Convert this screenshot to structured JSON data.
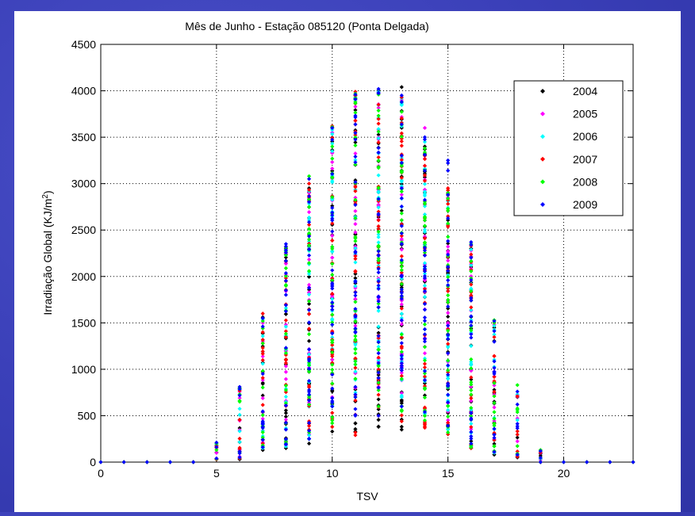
{
  "chart_data": {
    "type": "scatter",
    "title": "Mês de Junho - Estação 085120 (Ponta Delgada)",
    "xlabel": "TSV",
    "ylabel_main": "Irradiação Global (KJ/m",
    "ylabel_sup": "2",
    "ylabel_close": ")",
    "xlim": [
      0,
      23
    ],
    "ylim": [
      0,
      4500
    ],
    "xticks": [
      0,
      5,
      10,
      15,
      20
    ],
    "yticks": [
      0,
      500,
      1000,
      1500,
      2000,
      2500,
      3000,
      3500,
      4000,
      4500
    ],
    "grid": true,
    "legend_position": "top-right",
    "hours": [
      0,
      1,
      2,
      3,
      4,
      5,
      6,
      7,
      8,
      9,
      10,
      11,
      12,
      13,
      14,
      15,
      16,
      17,
      18,
      19,
      20,
      21,
      22,
      23
    ],
    "series": [
      {
        "name": "2004",
        "color": "#000000",
        "hour_ranges": [
          [
            0,
            0
          ],
          [
            0,
            0
          ],
          [
            0,
            0
          ],
          [
            0,
            0
          ],
          [
            0,
            0
          ],
          [
            30,
            180
          ],
          [
            30,
            790
          ],
          [
            130,
            1560
          ],
          [
            150,
            2300
          ],
          [
            200,
            2950
          ],
          [
            330,
            3600
          ],
          [
            330,
            3950
          ],
          [
            380,
            4000
          ],
          [
            350,
            4040
          ],
          [
            500,
            3400
          ],
          [
            400,
            2900
          ],
          [
            150,
            2300
          ],
          [
            80,
            1450
          ],
          [
            50,
            700
          ],
          [
            0,
            90
          ],
          [
            0,
            0
          ],
          [
            0,
            0
          ],
          [
            0,
            0
          ],
          [
            0,
            0
          ]
        ]
      },
      {
        "name": "2005",
        "color": "#ff00ff",
        "hour_ranges": [
          [
            0,
            0
          ],
          [
            0,
            0
          ],
          [
            0,
            0
          ],
          [
            0,
            0
          ],
          [
            0,
            0
          ],
          [
            40,
            170
          ],
          [
            60,
            760
          ],
          [
            170,
            1500
          ],
          [
            180,
            2250
          ],
          [
            300,
            2900
          ],
          [
            700,
            3550
          ],
          [
            800,
            3900
          ],
          [
            800,
            3980
          ],
          [
            700,
            3900
          ],
          [
            560,
            3600
          ],
          [
            380,
            2850
          ],
          [
            180,
            2280
          ],
          [
            120,
            1480
          ],
          [
            60,
            720
          ],
          [
            0,
            100
          ],
          [
            0,
            0
          ],
          [
            0,
            0
          ],
          [
            0,
            0
          ],
          [
            0,
            0
          ]
        ]
      },
      {
        "name": "2006",
        "color": "#00ffff",
        "hour_ranges": [
          [
            0,
            0
          ],
          [
            0,
            0
          ],
          [
            0,
            0
          ],
          [
            0,
            0
          ],
          [
            0,
            0
          ],
          [
            35,
            190
          ],
          [
            40,
            780
          ],
          [
            150,
            1540
          ],
          [
            170,
            2280
          ],
          [
            250,
            2920
          ],
          [
            600,
            3580
          ],
          [
            750,
            3930
          ],
          [
            850,
            3990
          ],
          [
            700,
            3920
          ],
          [
            520,
            3450
          ],
          [
            350,
            2880
          ],
          [
            170,
            2290
          ],
          [
            100,
            1470
          ],
          [
            70,
            730
          ],
          [
            0,
            110
          ],
          [
            0,
            0
          ],
          [
            0,
            0
          ],
          [
            0,
            0
          ],
          [
            0,
            0
          ]
        ]
      },
      {
        "name": "2007",
        "color": "#ff0000",
        "hour_ranges": [
          [
            0,
            0
          ],
          [
            0,
            0
          ],
          [
            0,
            0
          ],
          [
            0,
            0
          ],
          [
            0,
            0
          ],
          [
            30,
            175
          ],
          [
            40,
            770
          ],
          [
            200,
            1600
          ],
          [
            220,
            2320
          ],
          [
            350,
            3000
          ],
          [
            380,
            3620
          ],
          [
            290,
            3990
          ],
          [
            500,
            3850
          ],
          [
            440,
            3930
          ],
          [
            370,
            3300
          ],
          [
            300,
            2950
          ],
          [
            150,
            2330
          ],
          [
            110,
            1500
          ],
          [
            60,
            710
          ],
          [
            0,
            105
          ],
          [
            0,
            0
          ],
          [
            0,
            0
          ],
          [
            0,
            0
          ],
          [
            0,
            0
          ]
        ]
      },
      {
        "name": "2008",
        "color": "#00ff00",
        "hour_ranges": [
          [
            0,
            0
          ],
          [
            0,
            0
          ],
          [
            0,
            0
          ],
          [
            0,
            0
          ],
          [
            0,
            0
          ],
          [
            35,
            200
          ],
          [
            50,
            800
          ],
          [
            180,
            1520
          ],
          [
            200,
            2310
          ],
          [
            320,
            3080
          ],
          [
            420,
            3610
          ],
          [
            700,
            3970
          ],
          [
            600,
            3960
          ],
          [
            550,
            3880
          ],
          [
            450,
            3380
          ],
          [
            320,
            2900
          ],
          [
            160,
            2350
          ],
          [
            120,
            1530
          ],
          [
            90,
            830
          ],
          [
            0,
            130
          ],
          [
            0,
            0
          ],
          [
            0,
            0
          ],
          [
            0,
            0
          ],
          [
            0,
            0
          ]
        ]
      },
      {
        "name": "2009",
        "color": "#0000ff",
        "hour_ranges": [
          [
            0,
            0
          ],
          [
            0,
            0
          ],
          [
            0,
            0
          ],
          [
            0,
            0
          ],
          [
            0,
            0
          ],
          [
            40,
            210
          ],
          [
            50,
            810
          ],
          [
            160,
            1550
          ],
          [
            190,
            2350
          ],
          [
            250,
            3050
          ],
          [
            600,
            3600
          ],
          [
            500,
            3960
          ],
          [
            500,
            4020
          ],
          [
            600,
            3950
          ],
          [
            540,
            3500
          ],
          [
            390,
            3250
          ],
          [
            200,
            2370
          ],
          [
            110,
            1520
          ],
          [
            80,
            760
          ],
          [
            0,
            120
          ],
          [
            0,
            0
          ],
          [
            0,
            0
          ],
          [
            0,
            0
          ],
          [
            0,
            0
          ]
        ]
      }
    ]
  }
}
